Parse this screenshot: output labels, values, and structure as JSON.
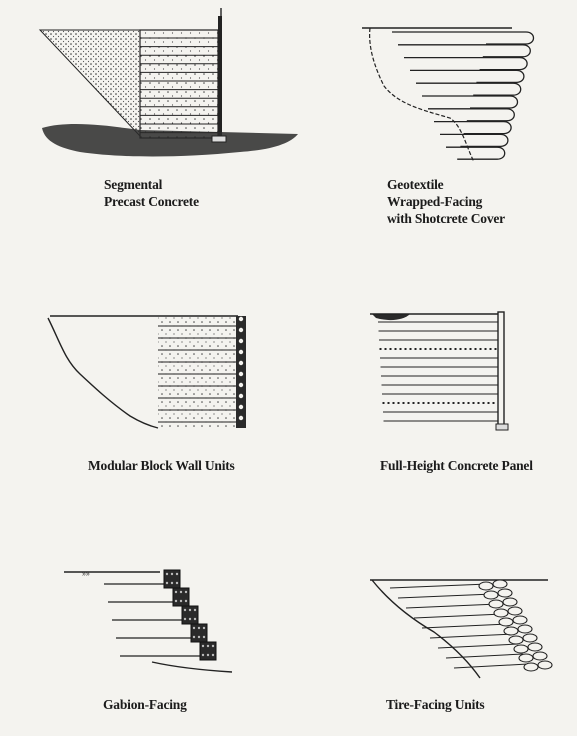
{
  "figure": {
    "panels": [
      {
        "id": "segmental",
        "caption_lines": [
          "Segmental",
          "Precast Concrete"
        ]
      },
      {
        "id": "geotextile",
        "caption_lines": [
          "Geotextile",
          "Wrapped-Facing",
          "with Shotcrete Cover"
        ]
      },
      {
        "id": "modular",
        "caption_lines": [
          "Modular Block Wall Units"
        ]
      },
      {
        "id": "fullheight",
        "caption_lines": [
          "Full-Height Concrete Panel"
        ]
      },
      {
        "id": "gabion",
        "caption_lines": [
          "Gabion-Facing"
        ]
      },
      {
        "id": "tire",
        "caption_lines": [
          "Tire-Facing Units"
        ]
      }
    ]
  },
  "colors": {
    "ink": "#222222",
    "paper": "#f4f3ef",
    "fill_dark": "#2a2a2a"
  }
}
